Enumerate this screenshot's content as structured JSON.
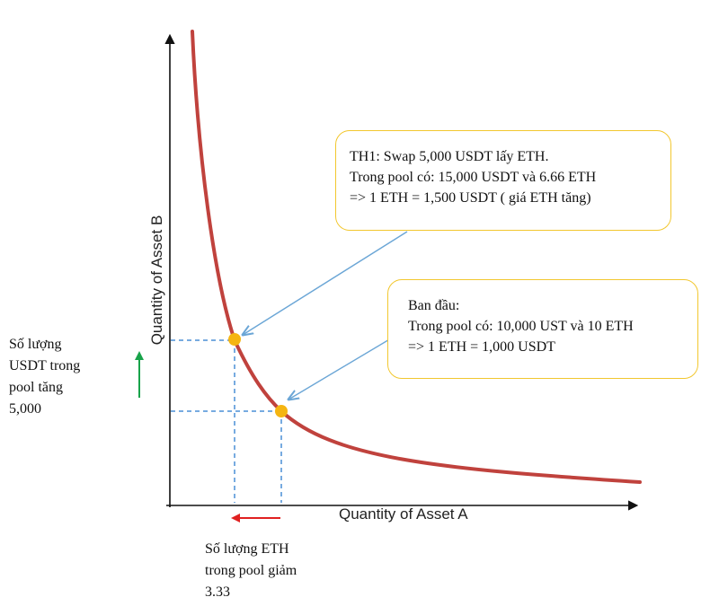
{
  "axes": {
    "x_title": "Quantity of Asset A",
    "y_title": "Quantity of Asset B"
  },
  "callouts": {
    "th1": {
      "lines": [
        "TH1: Swap 5,000 USDT lấy ETH.",
        "Trong pool có: 15,000 USDT và 6.66 ETH",
        "=> 1 ETH = 1,500 USDT ( giá ETH tăng)"
      ]
    },
    "initial": {
      "lines": [
        "Ban đầu:",
        "Trong pool có: 10,000 UST và 10 ETH",
        "=> 1 ETH = 1,000 USDT"
      ]
    }
  },
  "notes": {
    "usdt_increase": {
      "lines": [
        "Số lượng",
        "USDT trong",
        "pool tăng",
        "5,000"
      ]
    },
    "eth_decrease": {
      "lines": [
        "Số lượng ETH",
        "trong pool giảm",
        "3.33"
      ]
    }
  },
  "colors": {
    "curve": "#c0423d",
    "point": "#f5b512",
    "dashed_guide": "#4a8fd6",
    "callout_pointer": "#6ba6d6",
    "callout_border": "#f2c72f",
    "up_arrow": "#18a34a",
    "left_arrow": "#e02020",
    "axis": "#111111"
  }
}
